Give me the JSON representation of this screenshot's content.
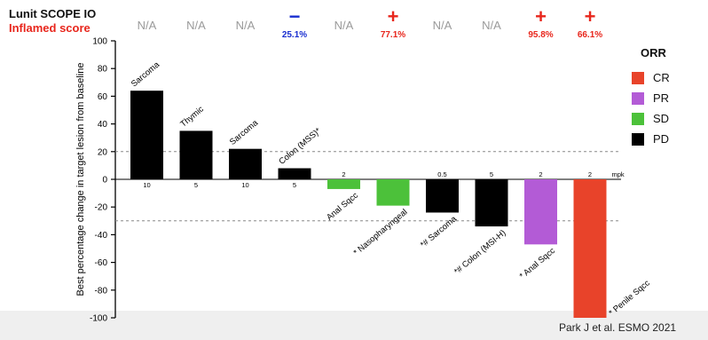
{
  "header": {
    "title": "Lunit SCOPE  IO",
    "subtitle": "Inflamed score",
    "title_color": "#111111",
    "subtitle_color": "#e8261c"
  },
  "citation": "Park J et al. ESMO 2021",
  "legend": {
    "title": "ORR",
    "items": [
      {
        "label": "CR",
        "color": "#e8432a"
      },
      {
        "label": "PR",
        "color": "#b35bd6"
      },
      {
        "label": "SD",
        "color": "#4cc13a"
      },
      {
        "label": "PD",
        "color": "#000000"
      }
    ]
  },
  "chart_data": {
    "type": "bar",
    "ylabel": "Best percentage change in target lesion from baseline",
    "ylim": [
      -100,
      100
    ],
    "yticks": [
      100,
      80,
      60,
      40,
      20,
      0,
      -20,
      -40,
      -60,
      -80,
      -100
    ],
    "reference_lines": [
      20,
      -30
    ],
    "dose_unit": "mpk",
    "categories": [
      "Sarcoma",
      "Thymic",
      "Sarcoma",
      "Colon (MSS)*",
      "Anal Sqcc",
      "* Nasopharyngeal",
      "*# Sarcoma",
      "*# Colon (MSI-H)",
      "* Anal Sqcc",
      "* Penile Sqcc"
    ],
    "values": [
      64,
      35,
      22,
      8,
      -7,
      -19,
      -24,
      -34,
      -47,
      -100
    ],
    "response": [
      "PD",
      "PD",
      "PD",
      "PD",
      "SD",
      "SD",
      "PD",
      "PD",
      "PR",
      "CR"
    ],
    "dose": [
      "10",
      "5",
      "10",
      "5",
      "2",
      "",
      "0.5",
      "5",
      "2",
      "2"
    ],
    "score_labels": [
      "N/A",
      "N/A",
      "N/A",
      "25.1%",
      "N/A",
      "77.1%",
      "N/A",
      "N/A",
      "95.8%",
      "66.1%"
    ],
    "score_signs": [
      "",
      "",
      "",
      "−",
      "",
      "+",
      "",
      "",
      "+",
      "+"
    ],
    "score_colors": [
      "#9a9a9a",
      "#9a9a9a",
      "#9a9a9a",
      "#1a2fd0",
      "#9a9a9a",
      "#e8261c",
      "#9a9a9a",
      "#9a9a9a",
      "#e8261c",
      "#e8261c"
    ]
  }
}
